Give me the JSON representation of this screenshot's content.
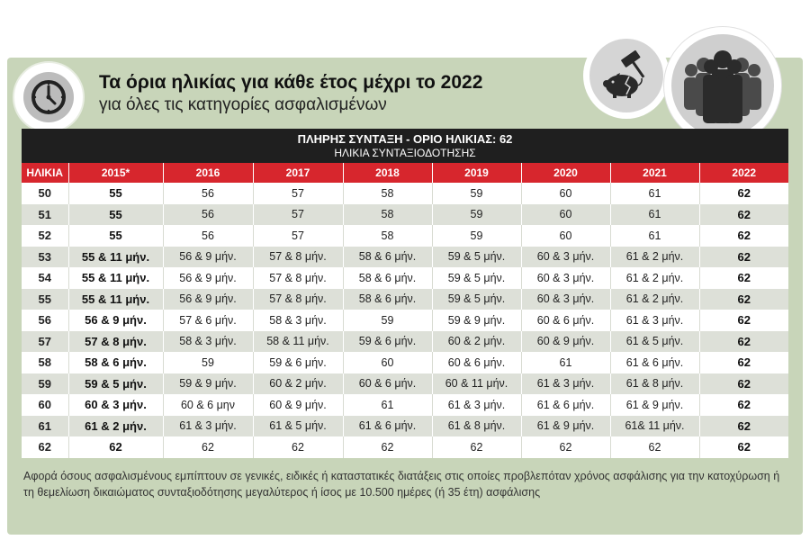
{
  "header": {
    "title": "Τα όρια ηλικίας για κάθε έτος μέχρι το 2022",
    "subtitle": "για όλες τις κατηγορίες ασφαλισμένων"
  },
  "icons": [
    "clock-icon",
    "piggy-bank-hammer-icon",
    "people-group-icon"
  ],
  "banner": {
    "line1_bold": "ΠΛΗΡΗΣ ΣΥΝΤΑΞΗ",
    "line1_rest": " - ΟΡΙΟ ΗΛΙΚΙΑΣ: 62",
    "line2": "ΗΛΙΚΙΑ ΣΥΝΤΑΞΙΟΔΟΤΗΣΗΣ"
  },
  "colors": {
    "panel": "#c8d5b9",
    "header_red": "#d7262d",
    "banner": "#1f1f1f",
    "row_alt": "#dde0d8"
  },
  "table": {
    "headers": [
      "ΗΛΙΚΙΑ",
      "2015*",
      "2016",
      "2017",
      "2018",
      "2019",
      "2020",
      "2021",
      "2022"
    ],
    "rows": [
      [
        "50",
        "55",
        "56",
        "57",
        "58",
        "59",
        "60",
        "61",
        "62"
      ],
      [
        "51",
        "55",
        "56",
        "57",
        "58",
        "59",
        "60",
        "61",
        "62"
      ],
      [
        "52",
        "55",
        "56",
        "57",
        "58",
        "59",
        "60",
        "61",
        "62"
      ],
      [
        "53",
        "55 & 11 μήν.",
        "56 & 9 μήν.",
        "57 & 8 μήν.",
        "58 & 6 μήν.",
        "59 & 5 μήν.",
        "60 & 3 μήν.",
        "61 & 2 μήν.",
        "62"
      ],
      [
        "54",
        "55 & 11 μήν.",
        "56 & 9 μήν.",
        "57 & 8 μήν.",
        "58 & 6 μήν.",
        "59 & 5 μήν.",
        "60 & 3 μήν.",
        "61 & 2 μήν.",
        "62"
      ],
      [
        "55",
        "55 & 11 μήν.",
        "56 & 9 μήν.",
        "57 & 8 μήν.",
        "58 & 6 μήν.",
        "59 & 5 μήν.",
        "60 & 3 μήν.",
        "61 & 2 μήν.",
        "62"
      ],
      [
        "56",
        "56 & 9 μήν.",
        "57 & 6 μήν.",
        "58 & 3 μήν.",
        "59",
        "59 & 9 μήν.",
        "60 & 6 μήν.",
        "61 & 3 μήν.",
        "62"
      ],
      [
        "57",
        "57 & 8 μήν.",
        "58 & 3 μήν.",
        "58 & 11 μήν.",
        "59 & 6 μήν.",
        "60 & 2 μήν.",
        "60 & 9 μήν.",
        "61 & 5 μήν.",
        "62"
      ],
      [
        "58",
        "58 & 6 μήν.",
        "59",
        "59 & 6 μήν.",
        "60",
        "60 & 6 μήν.",
        "61",
        "61 & 6 μήν.",
        "62"
      ],
      [
        "59",
        "59 & 5 μήν.",
        "59 & 9 μήν.",
        "60 & 2 μήν.",
        "60 & 6 μήν.",
        "60 & 11 μήν.",
        "61 & 3 μήν.",
        "61 & 8 μήν.",
        "62"
      ],
      [
        "60",
        "60 & 3 μήν.",
        "60 & 6 μην",
        "60 & 9 μήν.",
        "61",
        "61 & 3 μήν.",
        "61 & 6 μήν.",
        "61 & 9 μήν.",
        "62"
      ],
      [
        "61",
        "61 & 2 μήν.",
        "61 & 3 μήν.",
        "61 & 5 μήν.",
        "61 & 6 μήν.",
        "61 & 8 μήν.",
        "61 & 9 μήν.",
        "61& 11 μήν.",
        "62"
      ],
      [
        "62",
        "62",
        "62",
        "62",
        "62",
        "62",
        "62",
        "62",
        "62"
      ]
    ]
  },
  "footnote": "Αφορά όσους ασφαλισμένους εμπίπτουν σε γενικές, ειδικές ή καταστατικές διατάξεις στις οποίες προβλεπόταν χρόνος ασφάλισης για την κατοχύρωση ή τη θεμελίωση δικαιώματος συνταξιοδότησης μεγαλύτερος ή ίσος με 10.500 ημέρες (ή 35 έτη) ασφάλισης"
}
